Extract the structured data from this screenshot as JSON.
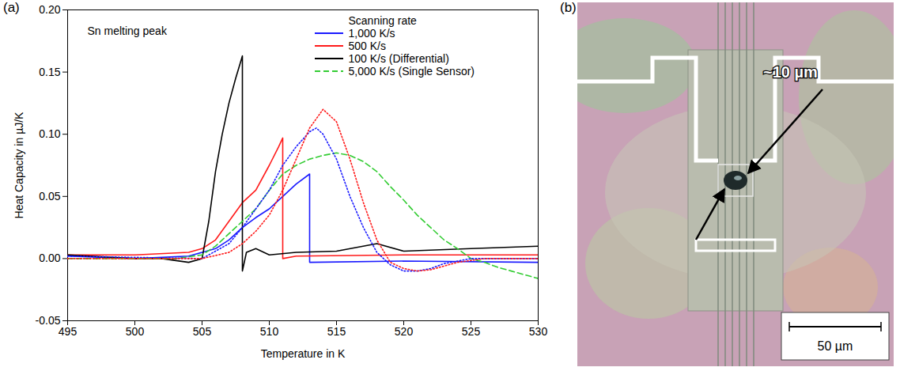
{
  "chart_data": {
    "type": "line",
    "panel_label": "(a)",
    "annotation": "Sn melting peak",
    "x_label": "Temperature in K",
    "y_label": "Heat Capacity in µJ/K",
    "xlim": [
      495,
      530
    ],
    "xticks": [
      495,
      500,
      505,
      510,
      515,
      520,
      525,
      530
    ],
    "ylim": [
      -0.05,
      0.2
    ],
    "yticks": [
      {
        "value": -0.05,
        "label": "-0.05"
      },
      {
        "value": 0.0,
        "label": "0.00"
      },
      {
        "value": 0.05,
        "label": "0.05"
      },
      {
        "value": 0.1,
        "label": "0.10"
      },
      {
        "value": 0.15,
        "label": "0.15"
      },
      {
        "value": 0.2,
        "label": "0.20"
      }
    ],
    "grid": false,
    "legend": "top-right",
    "legend_title": "Scanning rate",
    "series": [
      {
        "name": "1,000 K/s",
        "color": "#1a1aff",
        "line_style": "solid",
        "x": [
          495,
          500,
          504,
          506,
          507,
          508,
          509,
          510,
          511,
          512,
          513,
          513,
          520,
          530
        ],
        "values": [
          0.002,
          0.0,
          0.002,
          0.008,
          0.015,
          0.025,
          0.033,
          0.04,
          0.05,
          0.06,
          0.068,
          -0.003,
          -0.002,
          -0.003
        ]
      },
      {
        "name": "500 K/s",
        "color": "#ff1a1a",
        "line_style": "solid",
        "x": [
          495,
          500,
          504,
          505,
          506,
          507,
          508,
          509,
          510,
          510.7,
          511,
          511,
          512,
          520,
          530
        ],
        "values": [
          0.003,
          0.003,
          0.005,
          0.008,
          0.015,
          0.03,
          0.045,
          0.055,
          0.075,
          0.09,
          0.097,
          0.0,
          0.002,
          0.003,
          0.003
        ]
      },
      {
        "name": "100 K/s (Differential)",
        "color": "#000000",
        "line_style": "solid",
        "x": [
          495,
          500,
          502,
          504,
          505,
          505.5,
          506,
          506.5,
          507,
          507.5,
          508,
          508,
          508.3,
          509,
          510,
          512,
          515,
          518,
          520,
          525,
          530
        ],
        "values": [
          0.003,
          0.0,
          0.0,
          -0.003,
          0.0,
          0.03,
          0.07,
          0.1,
          0.125,
          0.145,
          0.163,
          -0.01,
          0.005,
          0.008,
          0.003,
          0.005,
          0.006,
          0.012,
          0.006,
          0.008,
          0.01
        ]
      },
      {
        "name": "5,000 K/s (Single Sensor)",
        "color": "#33cc33",
        "line_style": "dashed",
        "x": [
          495,
          503,
          505,
          506,
          507,
          508,
          509,
          510,
          511,
          512,
          513,
          514,
          515,
          516,
          517,
          518,
          519,
          520,
          521,
          522,
          523,
          524,
          525,
          526,
          527,
          528,
          529,
          530
        ],
        "values": [
          0.0,
          0.0,
          0.003,
          0.01,
          0.02,
          0.03,
          0.04,
          0.055,
          0.068,
          0.075,
          0.08,
          0.083,
          0.085,
          0.083,
          0.078,
          0.07,
          0.058,
          0.047,
          0.035,
          0.025,
          0.015,
          0.008,
          0.0,
          -0.003,
          -0.007,
          -0.01,
          -0.013,
          -0.016
        ]
      },
      {
        "name": null,
        "color": "#1a1aff",
        "line_style": "dotted",
        "x": [
          495,
          505,
          507,
          508,
          509,
          510,
          511,
          512,
          513,
          513.5,
          514,
          515,
          516,
          517,
          518,
          519,
          520,
          521,
          522,
          523,
          525,
          530
        ],
        "values": [
          0.002,
          0.0,
          0.012,
          0.025,
          0.04,
          0.055,
          0.075,
          0.09,
          0.102,
          0.105,
          0.1,
          0.08,
          0.05,
          0.025,
          0.005,
          -0.005,
          -0.01,
          -0.01,
          -0.008,
          -0.004,
          0.0,
          0.0
        ]
      },
      {
        "name": null,
        "color": "#ff1a1a",
        "line_style": "dotted",
        "x": [
          495,
          505,
          507,
          508,
          509,
          510,
          511,
          512,
          513,
          514,
          515,
          516,
          517,
          518,
          519,
          520,
          521,
          522,
          524,
          526,
          530
        ],
        "values": [
          0.0,
          0.0,
          0.005,
          0.012,
          0.022,
          0.035,
          0.055,
          0.08,
          0.105,
          0.12,
          0.11,
          0.08,
          0.045,
          0.015,
          -0.003,
          -0.008,
          -0.01,
          -0.009,
          -0.003,
          0.0,
          0.0
        ]
      }
    ]
  },
  "image_panel": {
    "panel_label": "(b)",
    "annotation": "~10 µm",
    "scale_bar": "50 µm"
  }
}
